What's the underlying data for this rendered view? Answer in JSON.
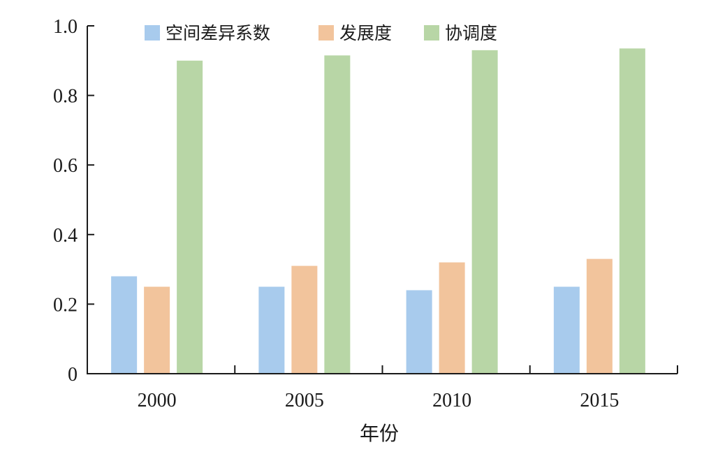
{
  "chart_data": {
    "type": "bar",
    "categories": [
      "2000",
      "2005",
      "2010",
      "2015"
    ],
    "series": [
      {
        "name": "空间差异系数",
        "values": [
          0.28,
          0.25,
          0.24,
          0.25
        ],
        "color": "#a8cbed"
      },
      {
        "name": "发展度",
        "values": [
          0.25,
          0.31,
          0.32,
          0.33
        ],
        "color": "#f2c49c"
      },
      {
        "name": "协调度",
        "values": [
          0.9,
          0.915,
          0.93,
          0.935
        ],
        "color": "#b8d6a6"
      }
    ],
    "title": "",
    "xlabel": "年份",
    "ylabel": "",
    "ylim": [
      0,
      1.0
    ],
    "yticks": [
      "0",
      "0.2",
      "0.4",
      "0.6",
      "0.8",
      "1.0"
    ],
    "grid": false,
    "legend_position": "top"
  }
}
